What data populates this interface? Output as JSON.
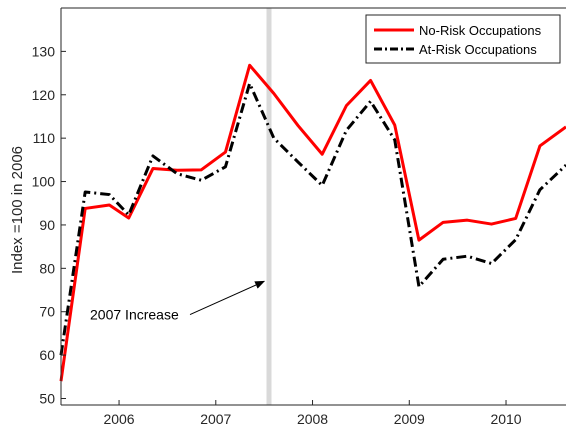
{
  "chart_data": {
    "type": "line",
    "ylabel": "Index =100 in 2006",
    "xlim": [
      2005.4,
      2010.62
    ],
    "ylim": [
      48.5,
      140
    ],
    "x_ticks": [
      2006,
      2007,
      2008,
      2009,
      2010
    ],
    "x_tick_labels": [
      "2006",
      "2007",
      "2008",
      "2009",
      "2010"
    ],
    "y_ticks": [
      50,
      60,
      70,
      80,
      90,
      100,
      110,
      120,
      130
    ],
    "y_tick_labels": [
      "50",
      "60",
      "70",
      "80",
      "90",
      "100",
      "110",
      "120",
      "130"
    ],
    "grid": false,
    "legend_position": "top-right",
    "series": [
      {
        "name": "No-Risk Occupations",
        "color": "#ff0000",
        "style": "solid",
        "x": [
          2005.4,
          2005.65,
          2005.9,
          2006.1,
          2006.35,
          2006.6,
          2006.85,
          2007.1,
          2007.35,
          2007.6,
          2007.85,
          2008.1,
          2008.35,
          2008.6,
          2008.85,
          2009.1,
          2009.35,
          2009.6,
          2009.85,
          2010.1,
          2010.35,
          2010.62
        ],
        "y": [
          54,
          93.8,
          94.6,
          91.6,
          103,
          102.6,
          102.7,
          106.8,
          126.8,
          120.3,
          112.9,
          106.3,
          117.5,
          123.3,
          113,
          86.5,
          90.6,
          91.1,
          90.2,
          91.5,
          108.2,
          112.6
        ]
      },
      {
        "name": "At-Risk Occupations",
        "color": "#000000",
        "style": "dash-dot",
        "x": [
          2005.4,
          2005.65,
          2005.9,
          2006.1,
          2006.35,
          2006.6,
          2006.85,
          2007.1,
          2007.35,
          2007.6,
          2007.85,
          2008.1,
          2008.35,
          2008.6,
          2008.85,
          2009.1,
          2009.35,
          2009.6,
          2009.85,
          2010.1,
          2010.35,
          2010.62
        ],
        "y": [
          60,
          97.6,
          97,
          92.3,
          105.9,
          101.8,
          100.3,
          103.4,
          122.6,
          110,
          104.5,
          99.1,
          111.8,
          118.5,
          109.6,
          75.8,
          82.1,
          82.8,
          81.1,
          86.6,
          98.1,
          103.8
        ]
      }
    ],
    "vertical_marker": {
      "x": 2007.55,
      "color": "#d9d9d9"
    },
    "annotation": {
      "text": "2007 Increase",
      "text_x": 2005.7,
      "text_y": 68.2,
      "arrow_to": [
        2007.5,
        77
      ]
    }
  }
}
